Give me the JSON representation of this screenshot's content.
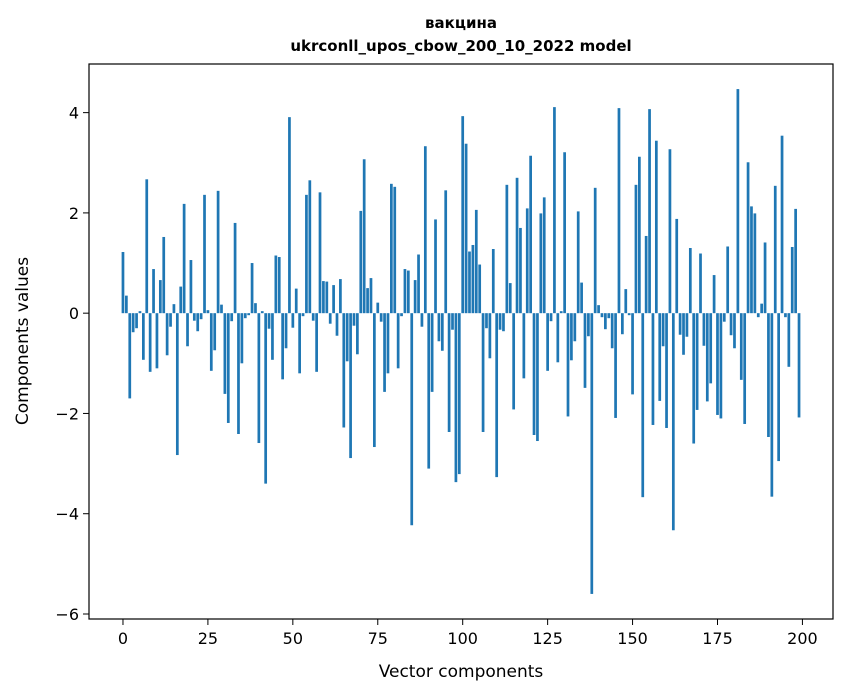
{
  "chart_data": {
    "type": "bar",
    "title": "вакцина",
    "subtitle": "ukrconll_upos_cbow_200_10_2022 model",
    "xlabel": "Vector components",
    "ylabel": "Components values",
    "xlim": [
      -10,
      209
    ],
    "ylim": [
      -6.1,
      4.97
    ],
    "xticks": [
      0,
      25,
      50,
      75,
      100,
      125,
      150,
      175,
      200
    ],
    "yticks": [
      -6,
      -4,
      -2,
      0,
      2,
      4
    ],
    "color": "#1f77b4",
    "grid": false,
    "legend": "none",
    "x": [
      0,
      1,
      2,
      3,
      4,
      5,
      6,
      7,
      8,
      9,
      10,
      11,
      12,
      13,
      14,
      15,
      16,
      17,
      18,
      19,
      20,
      21,
      22,
      23,
      24,
      25,
      26,
      27,
      28,
      29,
      30,
      31,
      32,
      33,
      34,
      35,
      36,
      37,
      38,
      39,
      40,
      41,
      42,
      43,
      44,
      45,
      46,
      47,
      48,
      49,
      50,
      51,
      52,
      53,
      54,
      55,
      56,
      57,
      58,
      59,
      60,
      61,
      62,
      63,
      64,
      65,
      66,
      67,
      68,
      69,
      70,
      71,
      72,
      73,
      74,
      75,
      76,
      77,
      78,
      79,
      80,
      81,
      82,
      83,
      84,
      85,
      86,
      87,
      88,
      89,
      90,
      91,
      92,
      93,
      94,
      95,
      96,
      97,
      98,
      99,
      100,
      101,
      102,
      103,
      104,
      105,
      106,
      107,
      108,
      109,
      110,
      111,
      112,
      113,
      114,
      115,
      116,
      117,
      118,
      119,
      120,
      121,
      122,
      123,
      124,
      125,
      126,
      127,
      128,
      129,
      130,
      131,
      132,
      133,
      134,
      135,
      136,
      137,
      138,
      139,
      140,
      141,
      142,
      143,
      144,
      145,
      146,
      147,
      148,
      149,
      150,
      151,
      152,
      153,
      154,
      155,
      156,
      157,
      158,
      159,
      160,
      161,
      162,
      163,
      164,
      165,
      166,
      167,
      168,
      169,
      170,
      171,
      172,
      173,
      174,
      175,
      176,
      177,
      178,
      179,
      180,
      181,
      182,
      183,
      184,
      185,
      186,
      187,
      188,
      189,
      190,
      191,
      192,
      193,
      194,
      195,
      196,
      197,
      198,
      199
    ],
    "values": [
      1.22,
      0.35,
      -1.7,
      -0.38,
      -0.3,
      0.04,
      -0.93,
      2.67,
      -1.17,
      0.88,
      -1.1,
      0.66,
      1.52,
      -0.84,
      -0.27,
      0.18,
      -2.83,
      0.53,
      2.18,
      -0.66,
      1.06,
      -0.15,
      -0.36,
      -0.12,
      2.36,
      0.06,
      -1.15,
      -0.74,
      2.44,
      0.17,
      -1.61,
      -2.19,
      -0.16,
      1.8,
      -2.41,
      -1.0,
      -0.1,
      -0.04,
      1.0,
      0.2,
      -2.59,
      0.04,
      -3.4,
      -0.31,
      -0.93,
      1.15,
      1.12,
      -1.32,
      -0.7,
      3.91,
      -0.29,
      0.49,
      -1.2,
      -0.06,
      2.36,
      2.65,
      -0.15,
      -1.17,
      2.41,
      0.64,
      0.63,
      -0.21,
      0.56,
      -0.45,
      0.68,
      -2.28,
      -0.96,
      -2.89,
      -0.25,
      -0.82,
      2.04,
      3.07,
      0.5,
      0.7,
      -2.67,
      0.21,
      -0.17,
      -1.57,
      -1.2,
      2.58,
      2.52,
      -1.1,
      -0.06,
      0.88,
      0.85,
      -4.23,
      0.66,
      1.17,
      -0.27,
      3.33,
      -3.1,
      -1.57,
      1.87,
      -0.56,
      -0.75,
      2.45,
      -2.37,
      -0.33,
      -3.37,
      -3.21,
      3.93,
      3.38,
      1.23,
      1.36,
      2.06,
      0.97,
      -2.37,
      -0.3,
      -0.9,
      1.28,
      -3.27,
      -0.33,
      -0.36,
      2.56,
      0.6,
      -1.92,
      2.7,
      1.7,
      -1.3,
      2.09,
      3.14,
      -2.43,
      -2.55,
      1.99,
      2.31,
      -1.15,
      -0.16,
      4.11,
      -0.98,
      0.04,
      3.21,
      -2.06,
      -0.94,
      -0.56,
      2.03,
      0.61,
      -1.49,
      -0.46,
      -5.6,
      2.5,
      0.16,
      -0.08,
      -0.32,
      -0.1,
      -0.7,
      -2.09,
      4.09,
      -0.42,
      0.48,
      -0.04,
      -1.62,
      2.56,
      3.12,
      -3.67,
      1.54,
      4.07,
      -2.23,
      3.44,
      -1.75,
      -0.66,
      -2.29,
      3.27,
      -4.33,
      1.88,
      -0.43,
      -0.83,
      -0.47,
      1.3,
      -2.6,
      -1.93,
      1.19,
      -0.65,
      -1.76,
      -1.4,
      0.76,
      -2.03,
      -2.1,
      -0.17,
      1.33,
      -0.44,
      -0.7,
      4.47,
      -1.33,
      -2.21,
      3.01,
      2.13,
      1.99,
      -0.08,
      0.19,
      1.41,
      -2.47,
      -3.66,
      2.54,
      -2.95,
      3.54,
      -0.08,
      -1.07,
      1.32,
      2.08,
      -2.08
    ]
  }
}
